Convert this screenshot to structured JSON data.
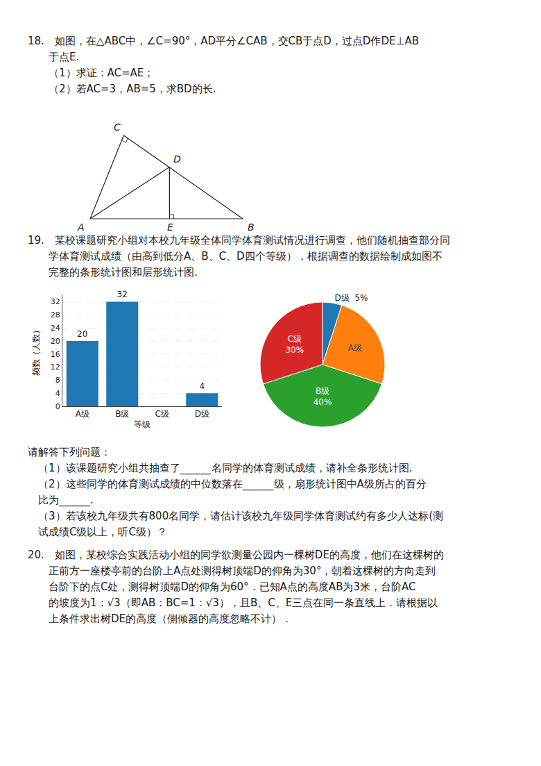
{
  "chart_data": [
    {
      "type": "bar",
      "categories": [
        "A级",
        "B级",
        "C级",
        "D级"
      ],
      "values": [
        20,
        32,
        0,
        4
      ],
      "value_labels": [
        "20",
        "32",
        null,
        "4"
      ],
      "data_labels": true,
      "ylim": [
        0,
        34
      ],
      "yticks": [
        0,
        4,
        8,
        12,
        16,
        20,
        24,
        28,
        32
      ],
      "grid": true,
      "xlabel": "等级",
      "ylabel": "频数（人数）",
      "annotations": [
        "18.　如图，在△ABC中，∠C=90°，AD平分∠CAB，交CB于点D，过点D作DE⊥AB",
        "　　于点E.",
        "　　（1）求证：AC=AE；",
        "　　（2）若AC=3，AB=5，求BD的长.",
        "C",
        "D",
        "A",
        "E",
        "B",
        "19.　某校课题研究小组对本校九年级全体同学体育测试情况进行调查，他们随机抽查部分同",
        "　　学体育测试成绩（由高到低分A、B、C、D四个等级），根据调查的数据绘制成如图不",
        "　　完整的条形统计图和层形统计图.",
        "请解答下列问题：",
        "　（1）该课题研究小组共抽查了______名同学的体育测试成绩，请补全条形统计图.",
        "　（2）这些同学的体育测试成绩的中位数落在______级，扇形统计图中A级所占的百分",
        "　比为______.",
        "　（3）若该校九年级共有800名同学，请估计该校九年级同学体育测试约有多少人达标(测",
        "　试成绩C级以上，听C级）？",
        "20.　如图，某校综合实践活动小组的同学欲测量公园内一棵树DE的高度，他们在这棵树的",
        "　　正前方一座楼亭前的台阶上A点处测得树顶端D的仰角为30°，朝着这棵树的方向走到",
        "　　台阶下的点C处，测得树顶端D的仰角为60°．已知A点的高度AB为3米，台阶AC",
        "　　的坡度为1：√3（即AB：BC=1：√3），且B、C、E三点在同一条直线上．请根据以",
        "　　上条件求出树DE的高度（側倾器的高度忽略不计）．"
      ]
    },
    {
      "type": "pie",
      "categories": [
        "D级",
        "A级",
        "B级",
        "C级"
      ],
      "values": [
        5,
        25,
        40,
        30
      ],
      "value_labels": [
        "D级  5%",
        "A级",
        "B级\n40%",
        "C级\n30%"
      ],
      "data_labels": true
    }
  ]
}
